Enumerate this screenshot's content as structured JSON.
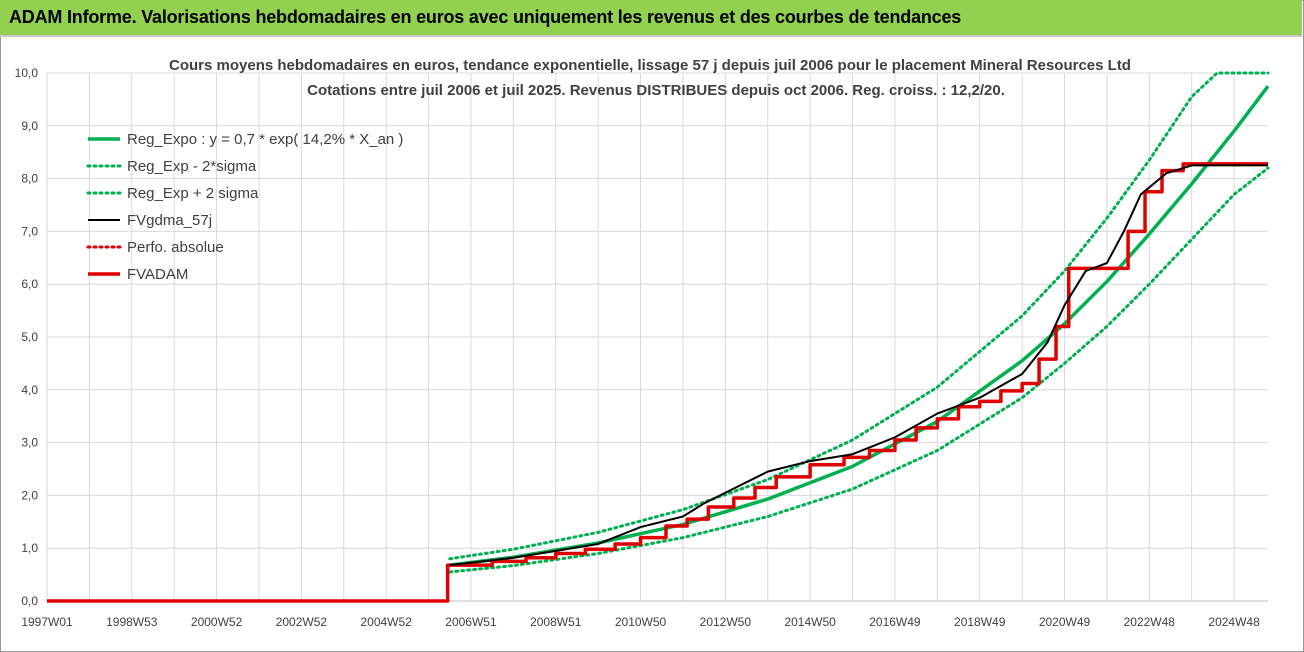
{
  "banner": {
    "title": "ADAM Informe. Valorisations hebdomadaires en euros avec uniquement les revenus et des courbes de tendances"
  },
  "colors": {
    "banner_bg": "#92d050",
    "green": "#00b050",
    "red": "#e00000",
    "black": "#000000",
    "grid": "#d9d9d9"
  },
  "chart_data": {
    "type": "line",
    "title": "Cours moyens hebdomadaires en euros, tendance exponentielle, lissage 57 j depuis juil 2006 pour le placement Mineral Resources Ltd",
    "subtitle": "Cotations entre juil 2006 et juil 2025. Revenus DISTRIBUES depuis oct 2006. Reg. croiss. : 12,2/20.",
    "xlabel": "",
    "ylabel": "",
    "ylim": [
      0,
      10
    ],
    "xlim": [
      1997.0,
      2025.8
    ],
    "y_ticks": [
      "0,0",
      "1,0",
      "2,0",
      "3,0",
      "4,0",
      "5,0",
      "6,0",
      "7,0",
      "8,0",
      "9,0",
      "10,0"
    ],
    "x_tick_labels": [
      "1997W01",
      "1998W53",
      "2000W52",
      "2002W52",
      "2004W52",
      "2006W51",
      "2008W51",
      "2010W50",
      "2012W50",
      "2014W50",
      "2016W49",
      "2018W49",
      "2020W49",
      "2022W48",
      "2024W48"
    ],
    "grid": true,
    "legend_position": "top-left",
    "series": [
      {
        "name": "Reg_Expo : y = 0,7 * exp( 14,2% *  X_an )",
        "style": "solid",
        "color": "#00b050",
        "x": [
          2006.5,
          2008,
          2010,
          2012,
          2014,
          2016,
          2018,
          2020,
          2021,
          2022,
          2023,
          2024,
          2025,
          2025.8
        ],
        "y": [
          0.68,
          0.83,
          1.1,
          1.45,
          1.93,
          2.55,
          3.4,
          4.55,
          5.25,
          6.05,
          6.95,
          7.9,
          8.9,
          9.75
        ]
      },
      {
        "name": "Reg_Exp - 2*sigma",
        "style": "dotted",
        "color": "#00b050",
        "x": [
          2006.5,
          2008,
          2010,
          2012,
          2014,
          2016,
          2018,
          2020,
          2021,
          2022,
          2023,
          2024,
          2025,
          2025.8
        ],
        "y": [
          0.55,
          0.67,
          0.9,
          1.2,
          1.6,
          2.12,
          2.85,
          3.85,
          4.5,
          5.2,
          6.0,
          6.85,
          7.7,
          8.2
        ]
      },
      {
        "name": "Reg_Exp + 2 sigma",
        "style": "dotted",
        "color": "#00b050",
        "x": [
          2006.5,
          2008,
          2010,
          2012,
          2014,
          2016,
          2018,
          2020,
          2021,
          2022,
          2023,
          2024,
          2024.6,
          2025.8
        ],
        "y": [
          0.8,
          0.98,
          1.3,
          1.73,
          2.3,
          3.05,
          4.05,
          5.4,
          6.25,
          7.25,
          8.35,
          9.55,
          10.0,
          10.0
        ]
      },
      {
        "name": "FVgdma_57j",
        "style": "solid",
        "color": "#000000",
        "x": [
          2006.5,
          2008,
          2009,
          2010,
          2011,
          2012,
          2012.5,
          2013,
          2014,
          2015,
          2016,
          2017,
          2018,
          2019,
          2020,
          2020.6,
          2021,
          2021.5,
          2022,
          2022.4,
          2022.8,
          2023.4,
          2024,
          2025.8
        ],
        "y": [
          0.68,
          0.82,
          0.95,
          1.08,
          1.4,
          1.6,
          1.85,
          2.05,
          2.45,
          2.65,
          2.78,
          3.1,
          3.55,
          3.85,
          4.3,
          4.9,
          5.6,
          6.25,
          6.4,
          7.0,
          7.7,
          8.1,
          8.25,
          8.25
        ]
      },
      {
        "name": "Perfo. absolue",
        "style": "dotted",
        "color": "#e00000",
        "x": [],
        "y": []
      },
      {
        "name": "FVADAM",
        "style": "step",
        "color": "#e00000",
        "x": [
          1997.0,
          2006.45,
          2006.45,
          2007.5,
          2008.3,
          2009.0,
          2009.7,
          2010.4,
          2011.0,
          2011.6,
          2012.1,
          2012.6,
          2013.2,
          2013.7,
          2014.2,
          2015.0,
          2015.8,
          2016.4,
          2017.0,
          2017.5,
          2018.0,
          2018.5,
          2019.0,
          2019.5,
          2020.0,
          2020.4,
          2020.8,
          2021.1,
          2022.0,
          2022.5,
          2022.9,
          2023.3,
          2023.8,
          2025.8
        ],
        "y": [
          0.0,
          0.0,
          0.68,
          0.75,
          0.82,
          0.9,
          0.98,
          1.08,
          1.2,
          1.42,
          1.55,
          1.78,
          1.95,
          2.15,
          2.35,
          2.58,
          2.72,
          2.85,
          3.05,
          3.28,
          3.45,
          3.68,
          3.78,
          3.98,
          4.12,
          4.58,
          5.2,
          6.3,
          6.3,
          7.0,
          7.75,
          8.15,
          8.28,
          8.28
        ]
      }
    ]
  }
}
